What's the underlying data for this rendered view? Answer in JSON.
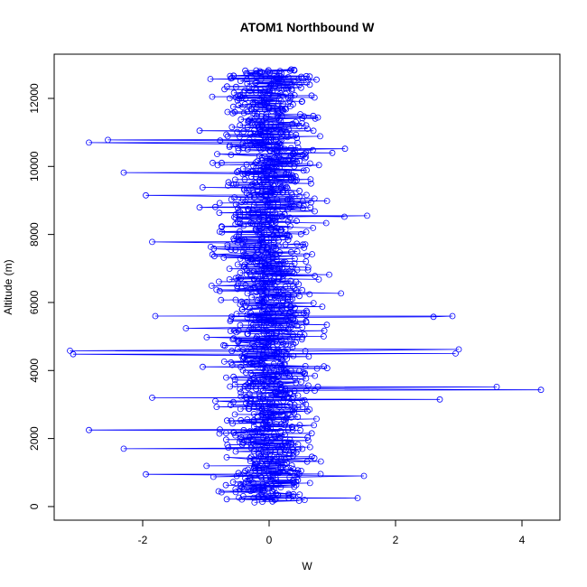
{
  "chart_data": {
    "type": "scatter",
    "title": "ATOM1 Northbound W",
    "xlabel": "W",
    "ylabel": "Altitude (m)",
    "xlim": [
      -3.4,
      4.6
    ],
    "ylim": [
      -400,
      13300
    ],
    "xticks": [
      -2,
      0,
      2,
      4
    ],
    "yticks": [
      0,
      2000,
      4000,
      6000,
      8000,
      10000,
      12000
    ],
    "style": {
      "color": "#0000ff",
      "marker": "open-circle",
      "connected": true,
      "grid": false
    },
    "series": [
      {
        "y_range": [
          150,
          12850
        ],
        "n_points": 1400,
        "center_x": 0.0,
        "typical_spread": 0.35,
        "notable_points": [
          {
            "x": -2.85,
            "y": 10700
          },
          {
            "x": -2.55,
            "y": 10780
          },
          {
            "x": -2.3,
            "y": 9820
          },
          {
            "x": -1.95,
            "y": 9150
          },
          {
            "x": -1.85,
            "y": 7780
          },
          {
            "x": -1.1,
            "y": 11050
          },
          {
            "x": 1.2,
            "y": 10520
          },
          {
            "x": 1.55,
            "y": 8550
          },
          {
            "x": -1.8,
            "y": 5600
          },
          {
            "x": 2.9,
            "y": 5600
          },
          {
            "x": 2.6,
            "y": 5580
          },
          {
            "x": -3.15,
            "y": 4580
          },
          {
            "x": -3.1,
            "y": 4480
          },
          {
            "x": 3.0,
            "y": 4620
          },
          {
            "x": 2.95,
            "y": 4500
          },
          {
            "x": 4.3,
            "y": 3430
          },
          {
            "x": 3.6,
            "y": 3520
          },
          {
            "x": 2.7,
            "y": 3150
          },
          {
            "x": -2.85,
            "y": 2250
          },
          {
            "x": -1.85,
            "y": 3200
          },
          {
            "x": -2.3,
            "y": 1700
          },
          {
            "x": -1.95,
            "y": 950
          },
          {
            "x": 1.5,
            "y": 900
          },
          {
            "x": 0.35,
            "y": 12850
          },
          {
            "x": 0.75,
            "y": 12550
          },
          {
            "x": -0.9,
            "y": 12050
          },
          {
            "x": 1.4,
            "y": 250
          }
        ]
      }
    ]
  }
}
